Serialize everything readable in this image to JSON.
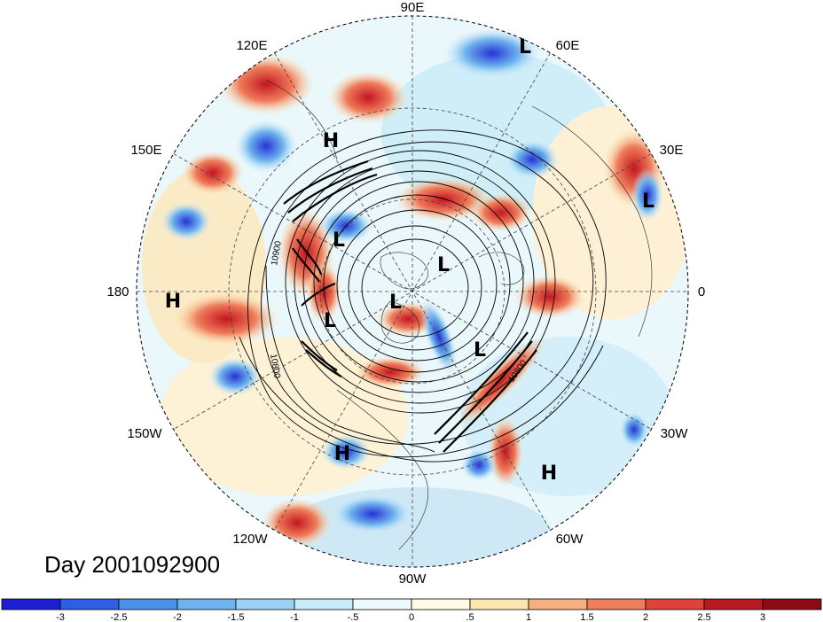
{
  "map": {
    "day_label": "Day 2001092900",
    "longitude_labels": [
      "90E",
      "60E",
      "30E",
      "0",
      "30W",
      "60W",
      "90W",
      "120W",
      "150W",
      "180",
      "150E",
      "120E"
    ],
    "contour_labels": [
      "10900",
      "10800",
      "10800"
    ],
    "pressure_systems": [
      {
        "type": "L",
        "label": "L"
      },
      {
        "type": "H",
        "label": "H"
      },
      {
        "type": "L",
        "label": "L"
      },
      {
        "type": "L",
        "label": "L"
      },
      {
        "type": "H",
        "label": "H"
      },
      {
        "type": "L",
        "label": "L"
      },
      {
        "type": "L",
        "label": "L"
      },
      {
        "type": "L",
        "label": "L"
      },
      {
        "type": "L",
        "label": "L"
      },
      {
        "type": "H",
        "label": "H"
      },
      {
        "type": "H",
        "label": "H"
      }
    ]
  },
  "colorbar": {
    "ticks": [
      "-3",
      "-2.5",
      "-2",
      "-1.5",
      "-1",
      "-.5",
      "0",
      ".5",
      "1",
      "1.5",
      "2",
      "2.5",
      "3"
    ],
    "colors": [
      "#1c1fd1",
      "#2f5ee6",
      "#4a8fe8",
      "#6fb3ee",
      "#9bd2f5",
      "#c8ecf8",
      "#eefbfd",
      "#fefbe6",
      "#fbe6b0",
      "#f6b07f",
      "#ef7d5b",
      "#e0413a",
      "#b81820",
      "#8e0a14"
    ]
  }
}
